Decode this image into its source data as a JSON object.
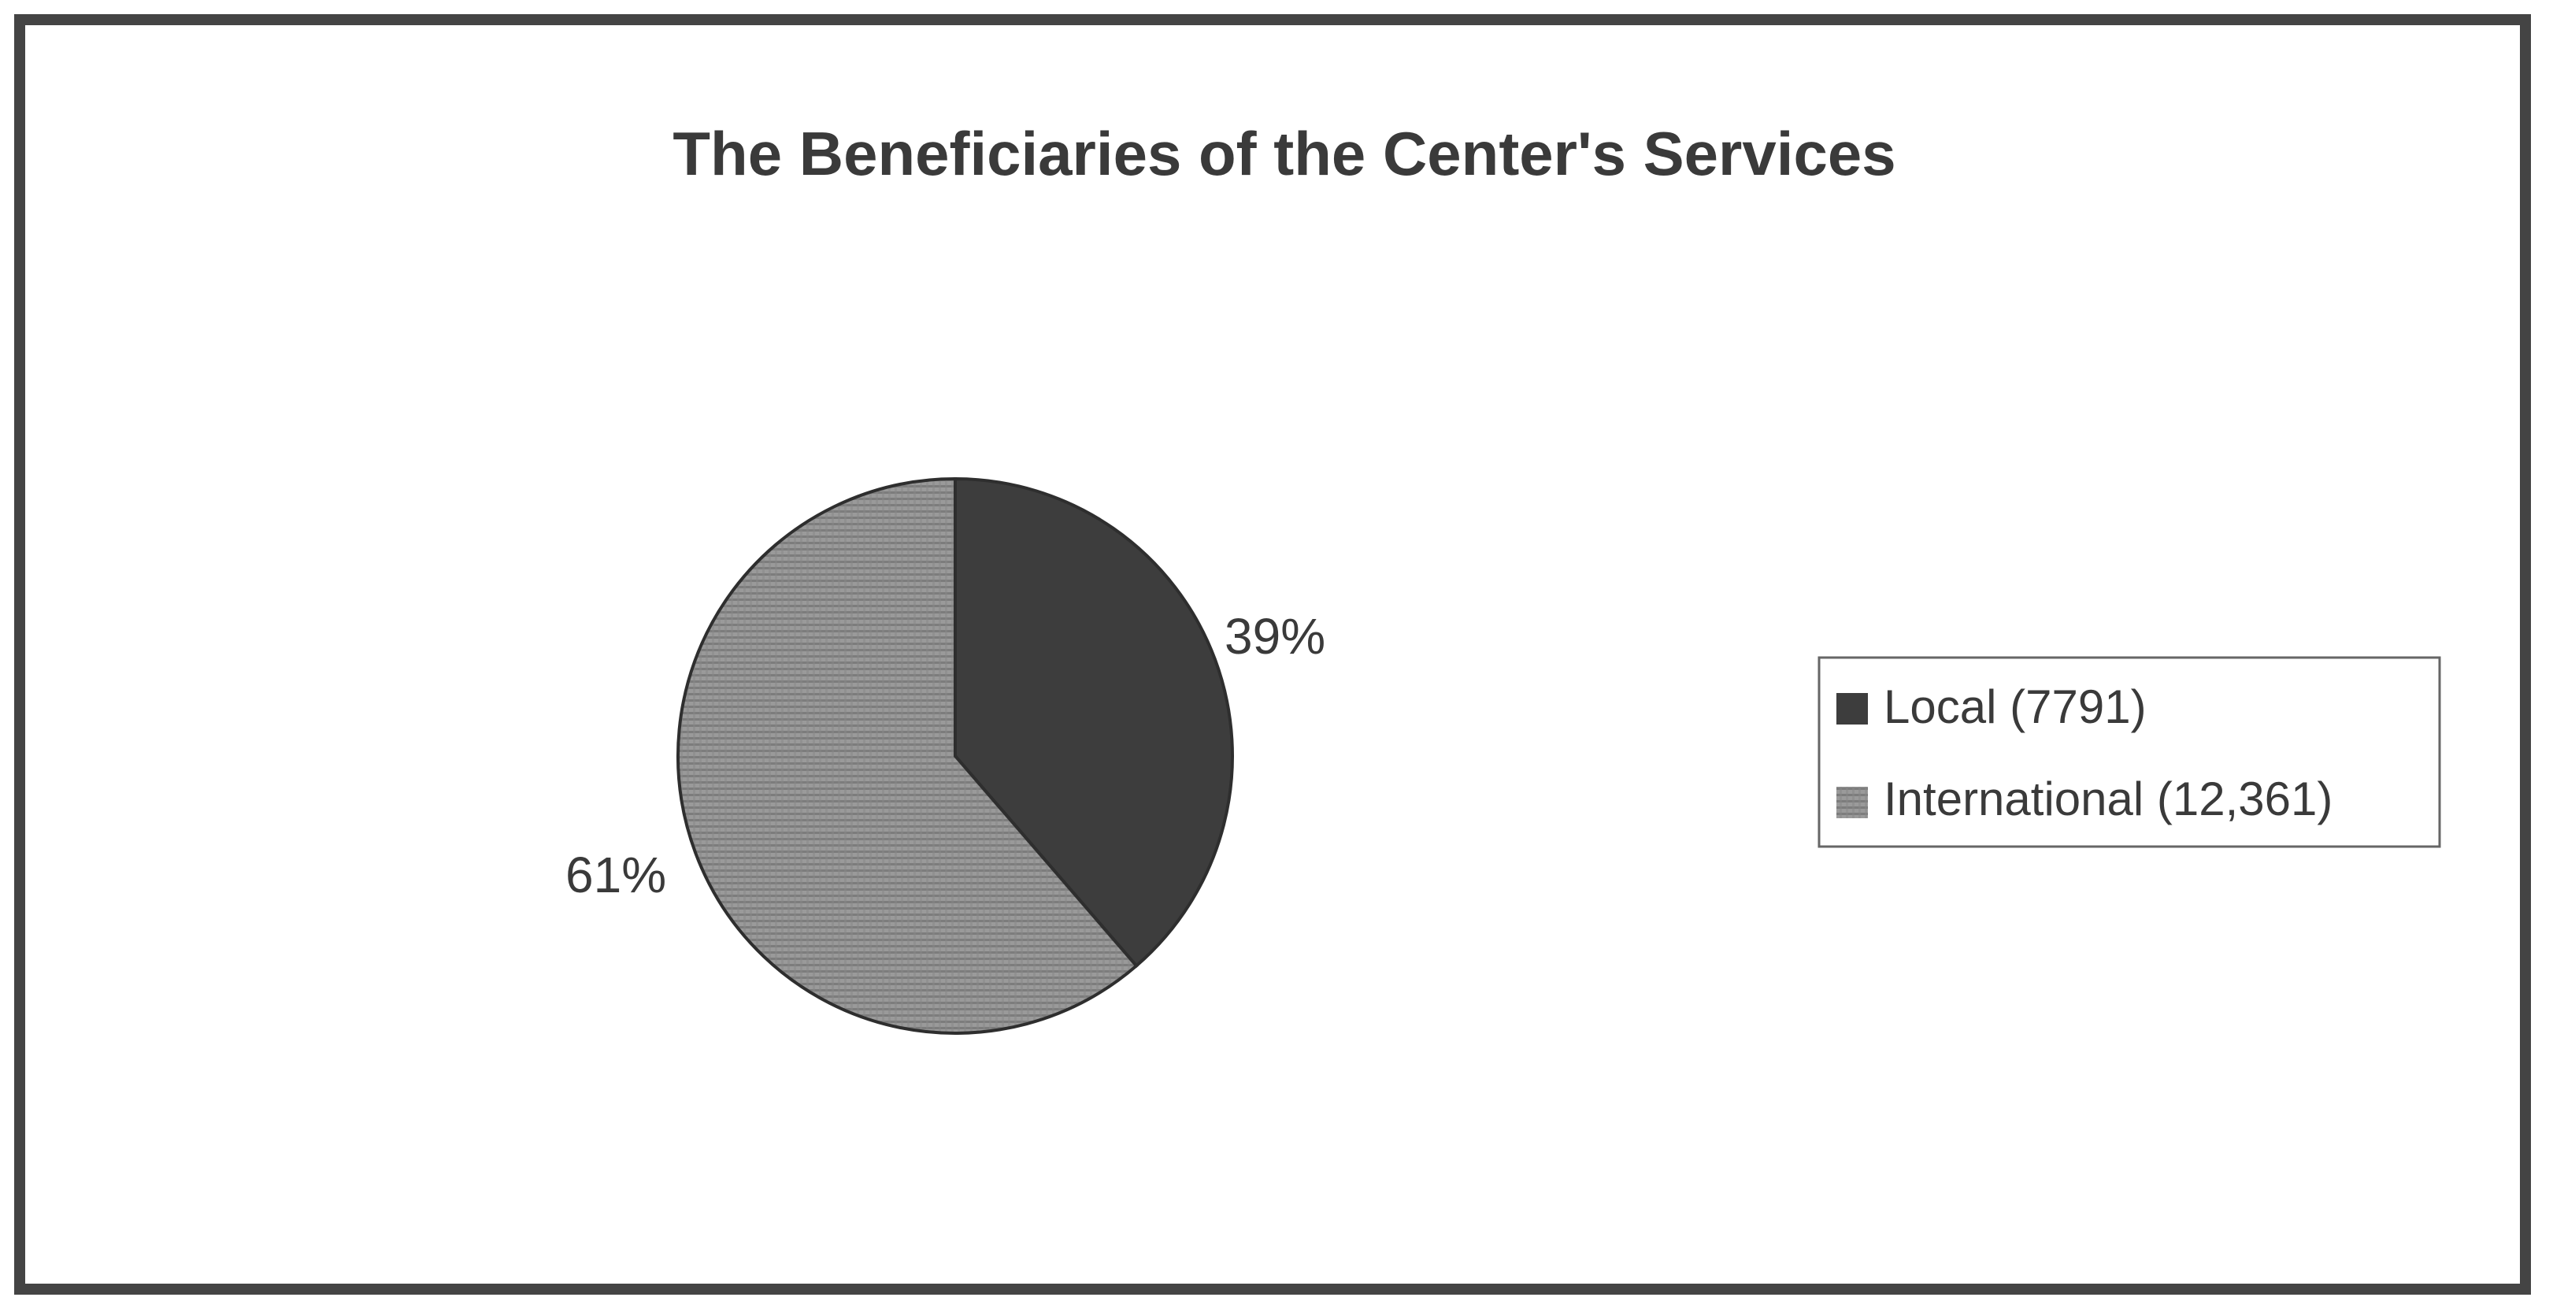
{
  "chart_data": {
    "type": "pie",
    "title": "The Beneficiaries of the Center's Services",
    "categories": [
      "Local (7791)",
      "International (12,361)"
    ],
    "values": [
      7791,
      12361
    ],
    "percent_labels": [
      "39%",
      "61%"
    ],
    "colors": [
      "#3d3d3d",
      "#8a8a8a"
    ],
    "legend_position": "right"
  }
}
